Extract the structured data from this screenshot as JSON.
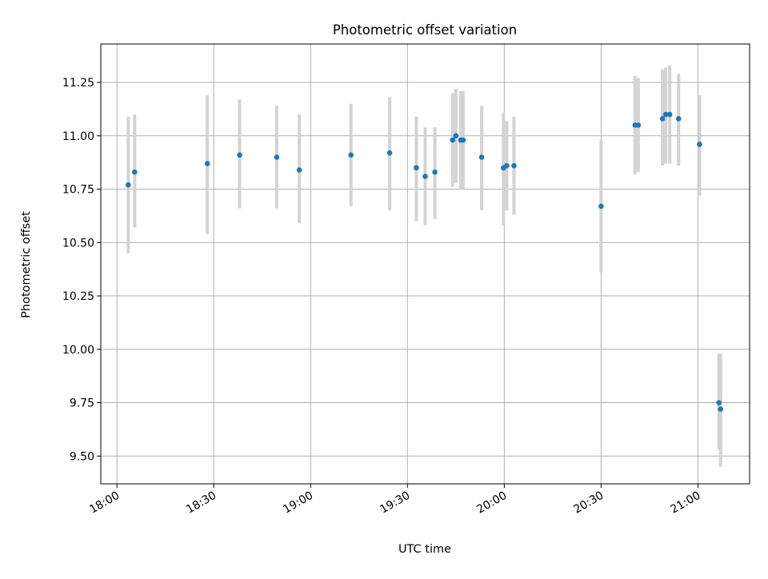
{
  "chart_data": {
    "type": "scatter",
    "title": "Photometric offset variation",
    "xlabel": "UTC time",
    "ylabel": "Photometric offset",
    "x_unit": "UTC time (HH:MM)",
    "xlim": [
      "17:55",
      "21:16"
    ],
    "ylim": [
      9.37,
      11.43
    ],
    "x_ticks": [
      "18:00",
      "18:30",
      "19:00",
      "19:30",
      "20:00",
      "20:30",
      "21:00"
    ],
    "y_ticks": [
      "9.50",
      "9.75",
      "10.00",
      "10.25",
      "10.50",
      "10.75",
      "11.00",
      "11.25"
    ],
    "grid": true,
    "legend": "none",
    "colors": {
      "point": "#1f77b4",
      "errorbar": "#d3d3d3",
      "grid": "#b0b0b0"
    },
    "series": [
      {
        "points": [
          {
            "x": "18:03:30",
            "y": 10.77,
            "ylo": 10.45,
            "yhi": 11.09
          },
          {
            "x": "18:05:30",
            "y": 10.83,
            "ylo": 10.57,
            "yhi": 11.1
          },
          {
            "x": "18:28:00",
            "y": 10.87,
            "ylo": 10.54,
            "yhi": 11.19
          },
          {
            "x": "18:38:00",
            "y": 10.91,
            "ylo": 10.66,
            "yhi": 11.17
          },
          {
            "x": "18:49:30",
            "y": 10.9,
            "ylo": 10.66,
            "yhi": 11.14
          },
          {
            "x": "18:56:30",
            "y": 10.84,
            "ylo": 10.59,
            "yhi": 11.1
          },
          {
            "x": "19:12:30",
            "y": 10.91,
            "ylo": 10.67,
            "yhi": 11.15
          },
          {
            "x": "19:24:30",
            "y": 10.92,
            "ylo": 10.65,
            "yhi": 11.18
          },
          {
            "x": "19:32:45",
            "y": 10.85,
            "ylo": 10.6,
            "yhi": 11.09
          },
          {
            "x": "19:35:30",
            "y": 10.81,
            "ylo": 10.58,
            "yhi": 11.04
          },
          {
            "x": "19:38:30",
            "y": 10.83,
            "ylo": 10.61,
            "yhi": 11.04
          },
          {
            "x": "19:44:00",
            "y": 10.98,
            "ylo": 10.76,
            "yhi": 11.2
          },
          {
            "x": "19:45:00",
            "y": 11.0,
            "ylo": 10.78,
            "yhi": 11.22
          },
          {
            "x": "19:46:30",
            "y": 10.98,
            "ylo": 10.75,
            "yhi": 11.21
          },
          {
            "x": "19:47:15",
            "y": 10.98,
            "ylo": 10.75,
            "yhi": 11.21
          },
          {
            "x": "19:53:00",
            "y": 10.9,
            "ylo": 10.65,
            "yhi": 11.14
          },
          {
            "x": "19:59:45",
            "y": 10.85,
            "ylo": 10.58,
            "yhi": 11.11
          },
          {
            "x": "20:00:45",
            "y": 10.86,
            "ylo": 10.65,
            "yhi": 11.07
          },
          {
            "x": "20:03:00",
            "y": 10.86,
            "ylo": 10.63,
            "yhi": 11.09
          },
          {
            "x": "20:30:00",
            "y": 10.67,
            "ylo": 10.36,
            "yhi": 10.98
          },
          {
            "x": "20:40:30",
            "y": 11.05,
            "ylo": 10.82,
            "yhi": 11.28
          },
          {
            "x": "20:41:30",
            "y": 11.05,
            "ylo": 10.83,
            "yhi": 11.27
          },
          {
            "x": "20:49:00",
            "y": 11.08,
            "ylo": 10.86,
            "yhi": 11.31
          },
          {
            "x": "20:50:00",
            "y": 11.1,
            "ylo": 10.87,
            "yhi": 11.32
          },
          {
            "x": "20:51:15",
            "y": 11.1,
            "ylo": 10.87,
            "yhi": 11.33
          },
          {
            "x": "20:54:00",
            "y": 11.08,
            "ylo": 10.86,
            "yhi": 11.29
          },
          {
            "x": "21:00:30",
            "y": 10.96,
            "ylo": 10.72,
            "yhi": 11.19
          },
          {
            "x": "21:06:30",
            "y": 9.75,
            "ylo": 9.53,
            "yhi": 9.98
          },
          {
            "x": "21:07:00",
            "y": 9.72,
            "ylo": 9.45,
            "yhi": 9.98
          }
        ]
      }
    ]
  }
}
